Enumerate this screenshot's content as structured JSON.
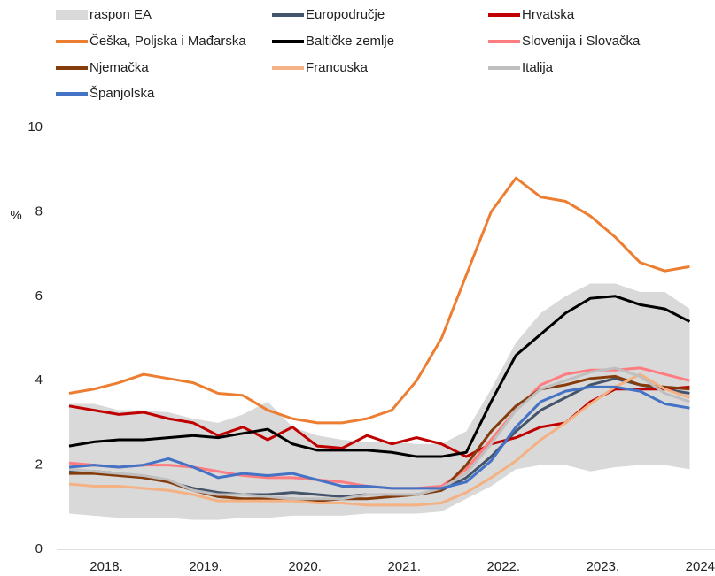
{
  "chart_data": {
    "type": "line",
    "y_label": "%",
    "x": [
      2018.125,
      2018.375,
      2018.625,
      2018.875,
      2019.125,
      2019.375,
      2019.625,
      2019.875,
      2020.125,
      2020.375,
      2020.625,
      2020.875,
      2021.125,
      2021.375,
      2021.625,
      2021.875,
      2022.125,
      2022.375,
      2022.625,
      2022.875,
      2023.125,
      2023.375,
      2023.625,
      2023.875,
      2024.125,
      2024.375
    ],
    "xlim": [
      2018,
      2024.63
    ],
    "xticks": [
      {
        "value": 2018.5,
        "label": "2018."
      },
      {
        "value": 2019.5,
        "label": "2019."
      },
      {
        "value": 2020.5,
        "label": "2020."
      },
      {
        "value": 2021.5,
        "label": "2021."
      },
      {
        "value": 2022.5,
        "label": "2022."
      },
      {
        "value": 2023.5,
        "label": "2023."
      },
      {
        "value": 2024.5,
        "label": "2024."
      }
    ],
    "ylim": [
      0,
      10
    ],
    "yticks": [
      0,
      2,
      4,
      6,
      8,
      10
    ],
    "range": {
      "name": "raspon EA",
      "color": "#d9d9d9",
      "lower": [
        0.85,
        0.8,
        0.75,
        0.75,
        0.75,
        0.7,
        0.7,
        0.75,
        0.75,
        0.8,
        0.8,
        0.8,
        0.85,
        0.85,
        0.85,
        0.9,
        1.2,
        1.5,
        1.9,
        2.0,
        2.0,
        1.85,
        1.95,
        2.0,
        2.0,
        1.9
      ],
      "upper": [
        3.45,
        3.45,
        3.3,
        3.3,
        3.25,
        3.1,
        3.0,
        3.2,
        3.5,
        2.9,
        2.7,
        2.6,
        2.55,
        2.55,
        2.5,
        2.5,
        2.8,
        3.8,
        4.9,
        5.6,
        6.0,
        6.3,
        6.3,
        6.1,
        6.1,
        5.7
      ]
    },
    "series": [
      {
        "name": "Europodručje",
        "color": "#44546a",
        "values": [
          1.85,
          1.85,
          1.8,
          1.7,
          1.6,
          1.45,
          1.35,
          1.3,
          1.3,
          1.35,
          1.3,
          1.25,
          1.3,
          1.3,
          1.3,
          1.4,
          1.7,
          2.2,
          2.8,
          3.3,
          3.6,
          3.9,
          4.05,
          3.9,
          3.8,
          3.7
        ]
      },
      {
        "name": "Hrvatska",
        "color": "#c00000",
        "values": [
          3.4,
          3.3,
          3.2,
          3.25,
          3.1,
          3.0,
          2.7,
          2.9,
          2.6,
          2.9,
          2.45,
          2.4,
          2.7,
          2.5,
          2.65,
          2.5,
          2.2,
          2.5,
          2.65,
          2.9,
          3.0,
          3.5,
          3.8,
          3.8,
          3.8,
          3.85
        ]
      },
      {
        "name": "Češka, Poljska i Mađarska",
        "color": "#ed7d31",
        "values": [
          3.7,
          3.8,
          3.95,
          4.15,
          4.05,
          3.95,
          3.7,
          3.65,
          3.3,
          3.1,
          3.0,
          3.0,
          3.1,
          3.3,
          4.0,
          5.0,
          6.5,
          8.0,
          8.8,
          8.35,
          8.25,
          7.9,
          7.4,
          6.8,
          6.6,
          6.7
        ]
      },
      {
        "name": "Baltičke zemlje",
        "color": "#000000",
        "values": [
          2.45,
          2.55,
          2.6,
          2.6,
          2.65,
          2.7,
          2.65,
          2.75,
          2.85,
          2.5,
          2.35,
          2.35,
          2.35,
          2.3,
          2.2,
          2.2,
          2.3,
          3.5,
          4.6,
          5.1,
          5.6,
          5.95,
          6.0,
          5.8,
          5.7,
          5.4
        ]
      },
      {
        "name": "Slovenija i Slovačka",
        "color": "#ff7c80",
        "values": [
          2.05,
          2.0,
          1.95,
          2.0,
          2.0,
          1.95,
          1.85,
          1.75,
          1.7,
          1.7,
          1.65,
          1.6,
          1.5,
          1.45,
          1.45,
          1.5,
          1.9,
          2.6,
          3.3,
          3.9,
          4.15,
          4.25,
          4.25,
          4.3,
          4.15,
          4.0
        ]
      },
      {
        "name": "Njemačka",
        "color": "#843c0c",
        "values": [
          1.8,
          1.8,
          1.75,
          1.7,
          1.6,
          1.4,
          1.25,
          1.2,
          1.2,
          1.2,
          1.15,
          1.2,
          1.2,
          1.25,
          1.3,
          1.4,
          2.0,
          2.8,
          3.4,
          3.8,
          3.9,
          4.05,
          4.1,
          3.9,
          3.85,
          3.8
        ]
      },
      {
        "name": "Francuska",
        "color": "#f4b183",
        "values": [
          1.55,
          1.5,
          1.5,
          1.45,
          1.4,
          1.3,
          1.15,
          1.15,
          1.15,
          1.15,
          1.1,
          1.1,
          1.05,
          1.05,
          1.05,
          1.1,
          1.35,
          1.7,
          2.1,
          2.6,
          3.0,
          3.45,
          3.85,
          4.15,
          3.8,
          3.6
        ]
      },
      {
        "name": "Italija",
        "color": "#bfbfbf",
        "values": [
          1.9,
          1.85,
          1.8,
          1.75,
          1.65,
          1.4,
          1.3,
          1.3,
          1.25,
          1.2,
          1.2,
          1.2,
          1.3,
          1.3,
          1.3,
          1.45,
          1.8,
          2.5,
          3.3,
          3.8,
          4.0,
          4.2,
          4.3,
          4.1,
          3.7,
          3.5
        ]
      },
      {
        "name": "Španjolska",
        "color": "#4472c4",
        "values": [
          1.95,
          2.0,
          1.95,
          2.0,
          2.15,
          1.95,
          1.7,
          1.8,
          1.75,
          1.8,
          1.65,
          1.5,
          1.5,
          1.45,
          1.45,
          1.45,
          1.6,
          2.1,
          2.9,
          3.5,
          3.75,
          3.85,
          3.85,
          3.75,
          3.45,
          3.35
        ]
      }
    ]
  }
}
